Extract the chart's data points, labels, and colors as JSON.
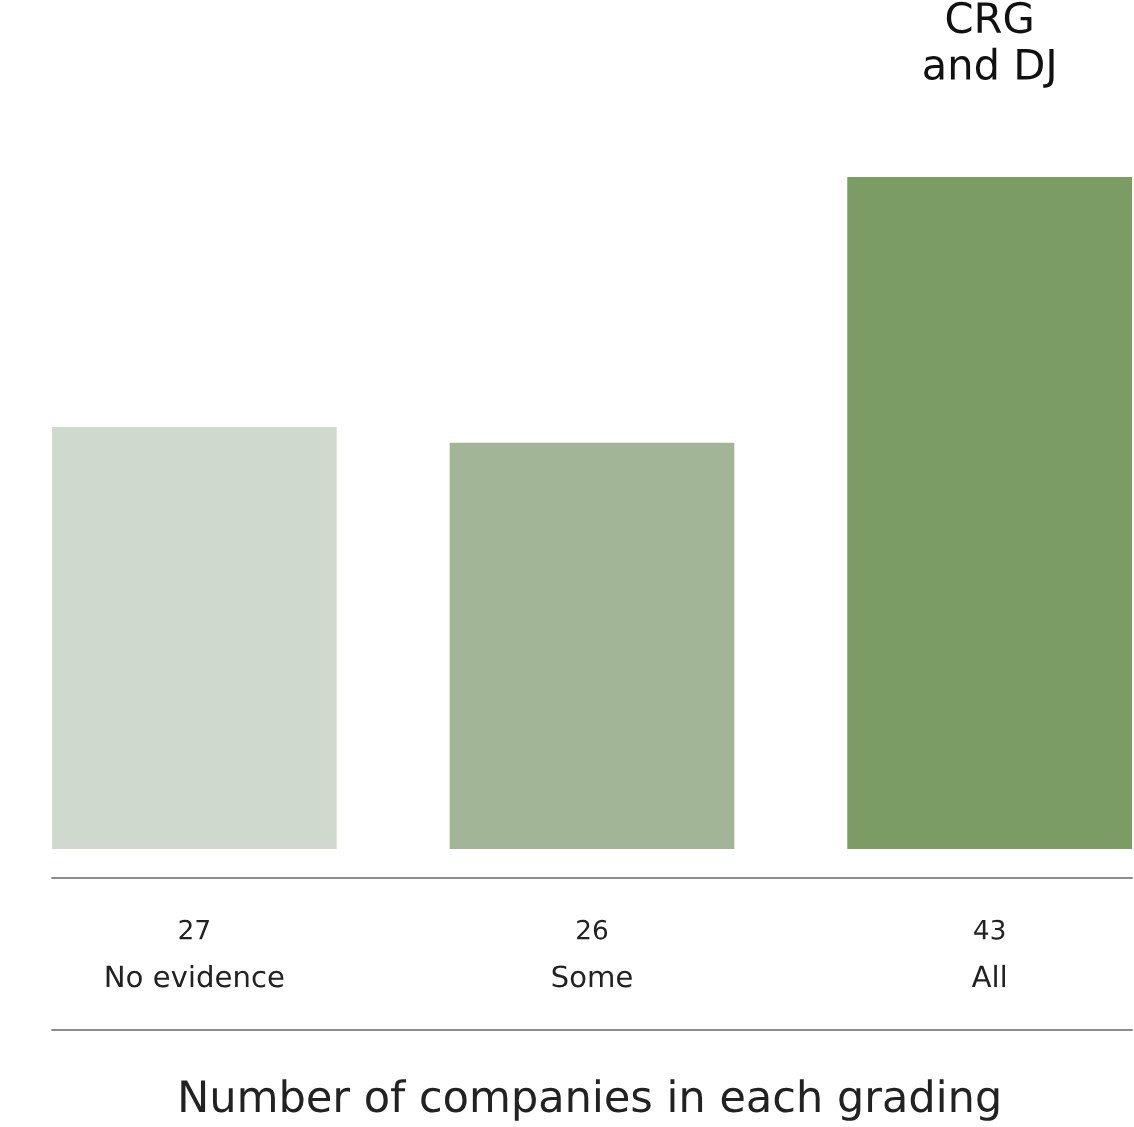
{
  "chart_data": {
    "type": "bar",
    "xlabel": "Number of companies in each grading",
    "categories": [
      "No evidence",
      "Some",
      "All"
    ],
    "values": [
      27,
      26,
      43
    ],
    "colors": [
      "#d0d9cd",
      "#a2b596",
      "#7b9c63"
    ],
    "data_labels": true,
    "annotations": [
      {
        "text": "CRG\nand DJ",
        "x": "All",
        "y": 43
      }
    ]
  }
}
